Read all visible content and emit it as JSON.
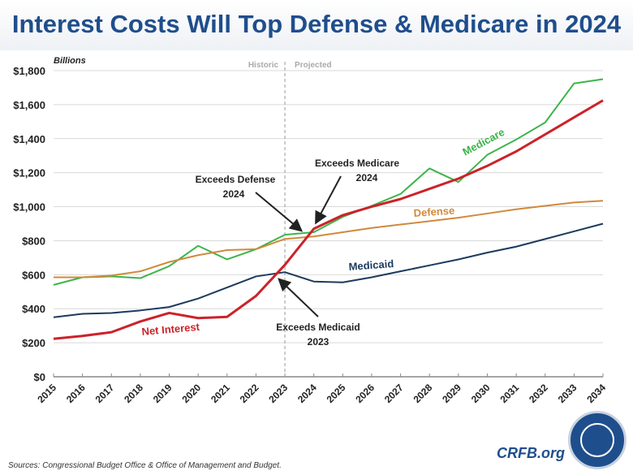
{
  "title": "Interest Costs Will Top Defense & Medicare in 2024",
  "sources": "Sources: Congressional Budget Office & Office of Management and Budget.",
  "brand": "CRFB.org",
  "chart_data": {
    "type": "line",
    "title": "Interest Costs Will Top Defense & Medicare in 2024",
    "ylabel": "Billions",
    "ylim": [
      0,
      1800
    ],
    "yticks": [
      "$0",
      "$200",
      "$400",
      "$600",
      "$800",
      "$1,000",
      "$1,200",
      "$1,400",
      "$1,600",
      "$1,800"
    ],
    "grid": true,
    "x": [
      "2015",
      "2016",
      "2017",
      "2018",
      "2019",
      "2020",
      "2021",
      "2022",
      "2023",
      "2024",
      "2025",
      "2026",
      "2027",
      "2028",
      "2029",
      "2030",
      "2031",
      "2032",
      "2033",
      "2034"
    ],
    "divider": {
      "year": "2023",
      "left_label": "Historic",
      "right_label": "Projected"
    },
    "series": [
      {
        "name": "Medicare",
        "color": "#3cb54a",
        "values": [
          540,
          585,
          590,
          580,
          650,
          770,
          690,
          750,
          835,
          850,
          940,
          1005,
          1075,
          1225,
          1145,
          1305,
          1395,
          1495,
          1725,
          1750
        ]
      },
      {
        "name": "Defense",
        "color": "#d08a3c",
        "values": [
          585,
          585,
          595,
          620,
          675,
          715,
          745,
          750,
          810,
          825,
          850,
          875,
          895,
          915,
          935,
          960,
          985,
          1005,
          1025,
          1035
        ]
      },
      {
        "name": "Medicaid",
        "color": "#1c3a5e",
        "values": [
          350,
          370,
          375,
          390,
          410,
          460,
          525,
          590,
          615,
          560,
          555,
          585,
          620,
          655,
          690,
          730,
          765,
          810,
          855,
          900
        ]
      },
      {
        "name": "Net Interest",
        "color": "#cc2229",
        "values": [
          223,
          240,
          262,
          325,
          375,
          345,
          352,
          475,
          658,
          870,
          950,
          1000,
          1045,
          1105,
          1165,
          1240,
          1325,
          1425,
          1525,
          1625
        ]
      }
    ],
    "annotations": [
      {
        "text1": "Exceeds Defense",
        "text2": "2024"
      },
      {
        "text1": "Exceeds Medicare",
        "text2": "2024"
      },
      {
        "text1": "Exceeds Medicaid",
        "text2": "2023"
      }
    ]
  }
}
